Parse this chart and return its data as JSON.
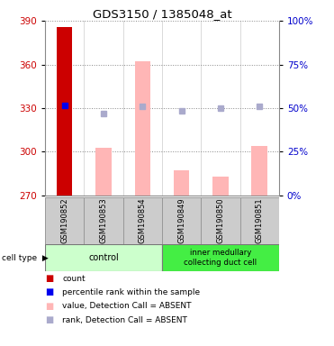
{
  "title": "GDS3150 / 1385048_at",
  "samples": [
    "GSM190852",
    "GSM190853",
    "GSM190854",
    "GSM190849",
    "GSM190850",
    "GSM190851"
  ],
  "ylim_left": [
    270,
    390
  ],
  "ylim_right": [
    0,
    100
  ],
  "yticks_left": [
    270,
    300,
    330,
    360,
    390
  ],
  "yticks_right": [
    0,
    25,
    50,
    75,
    100
  ],
  "count_values": [
    386,
    null,
    null,
    null,
    null,
    null
  ],
  "count_color": "#cc0000",
  "percentile_values": [
    332,
    null,
    null,
    null,
    null,
    null
  ],
  "percentile_color": "#0000ee",
  "value_absent": [
    null,
    303,
    362,
    287,
    283,
    304
  ],
  "value_absent_color": "#ffb6b6",
  "rank_absent": [
    null,
    326,
    331,
    328,
    330,
    331
  ],
  "rank_absent_color": "#aaaacc",
  "bar_bottom": 270,
  "grid_color": "#888888",
  "plot_bg": "#ffffff",
  "sample_bg": "#cccccc",
  "left_axis_color": "#cc0000",
  "right_axis_color": "#0000cc",
  "control_color": "#ccffcc",
  "inner_color": "#44ee44",
  "legend_items": [
    {
      "color": "#cc0000",
      "label": "count"
    },
    {
      "color": "#0000ee",
      "label": "percentile rank within the sample"
    },
    {
      "color": "#ffb6b6",
      "label": "value, Detection Call = ABSENT"
    },
    {
      "color": "#aaaacc",
      "label": "rank, Detection Call = ABSENT"
    }
  ]
}
